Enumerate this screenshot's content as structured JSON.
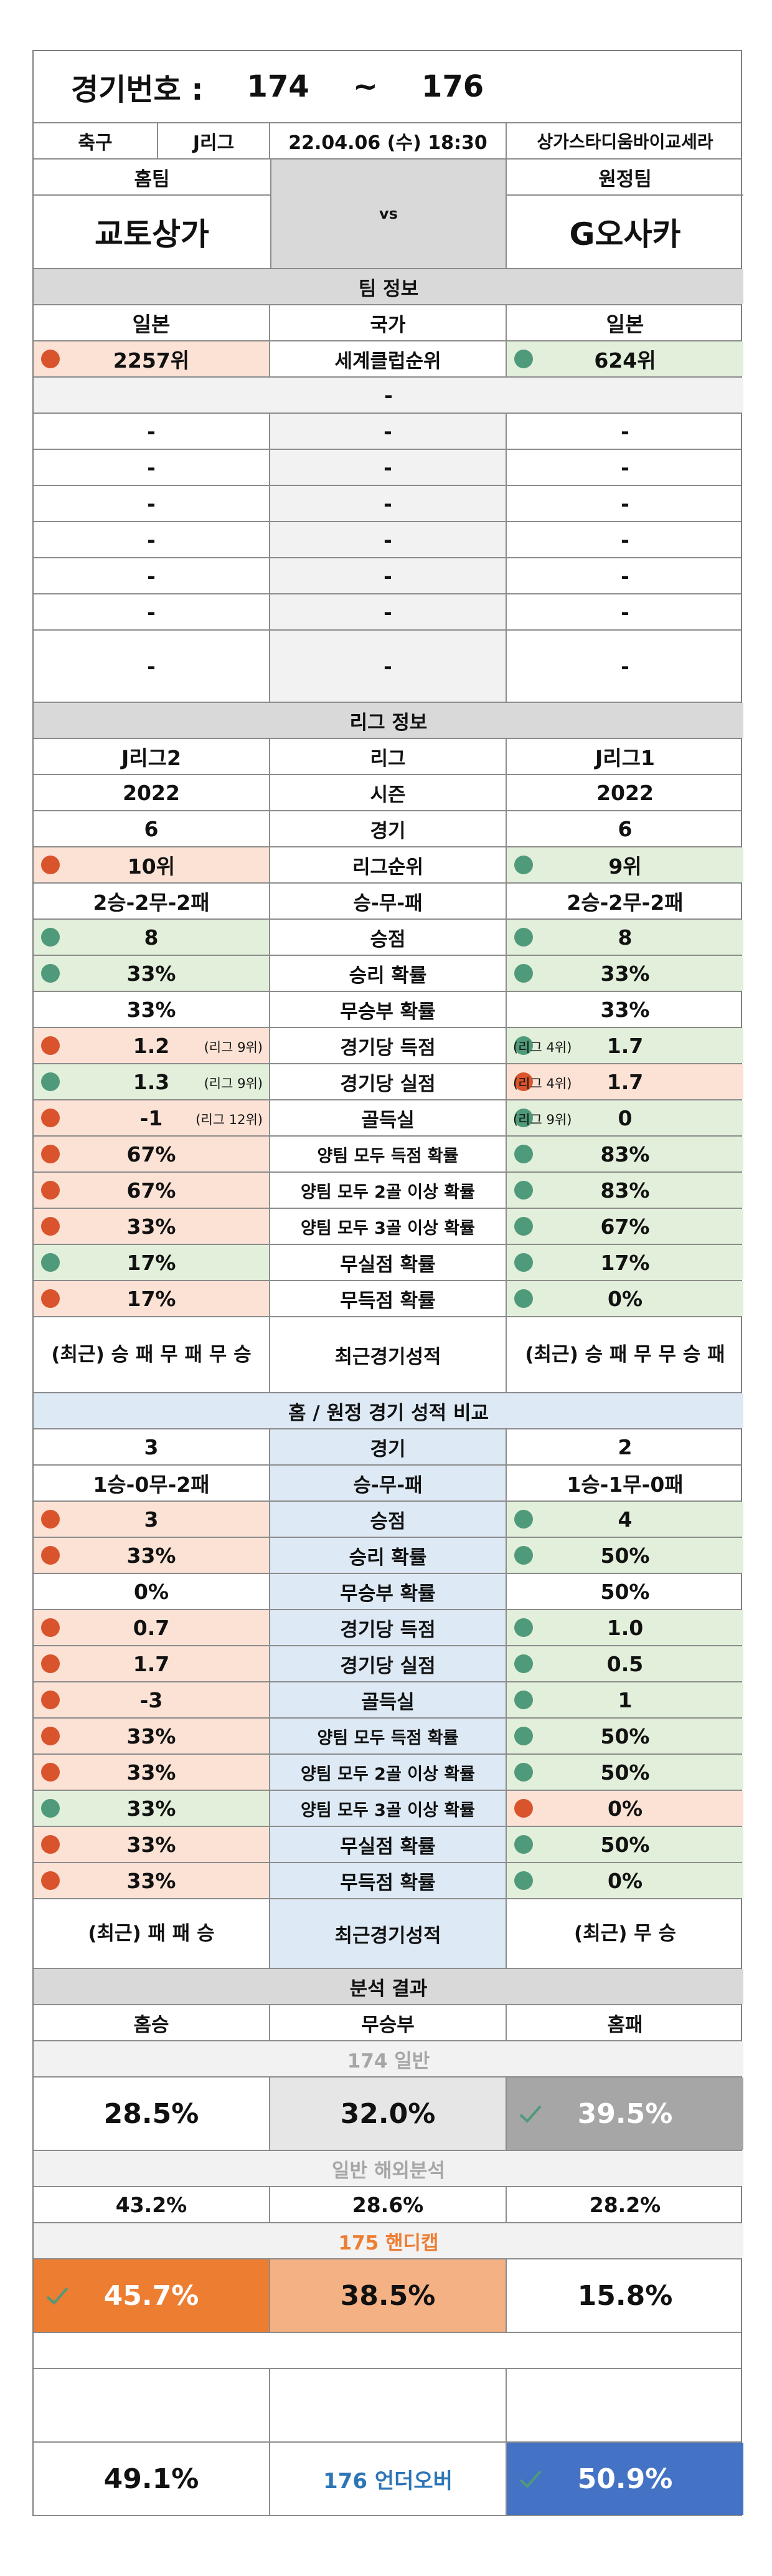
{
  "header": {
    "label": "경기번호 :",
    "from": "174",
    "sep": "~",
    "to": "176"
  },
  "match": {
    "sport": "축구",
    "league": "J리그",
    "datetime": "22.04.06 (수) 18:30",
    "venue": "상가스타디움바이교세라"
  },
  "teams": {
    "home_caption": "홈팀",
    "away_caption": "원정팀",
    "home": "교토상가",
    "away": "G오사카",
    "vs": "vs"
  },
  "team_info": {
    "title": "팀 정보",
    "country": {
      "home": "일본",
      "label": "국가",
      "away": "일본"
    },
    "club_rank": {
      "home": "2257위",
      "label": "세계클럽순위",
      "away": "624위"
    },
    "divider": "-",
    "blank_rows": [
      "-",
      "-",
      "-",
      "-",
      "-",
      "-",
      "-"
    ]
  },
  "league_info": {
    "title": "리그 정보",
    "rows": [
      {
        "home": "J리그2",
        "label": "리그",
        "away": "J리그1"
      },
      {
        "home": "2022",
        "label": "시즌",
        "away": "2022"
      },
      {
        "home": "6",
        "label": "경기",
        "away": "6"
      },
      {
        "home": "10위",
        "label": "리그순위",
        "away": "9위",
        "hc": "pink",
        "hd": "red",
        "ac": "green",
        "ad": "grn"
      },
      {
        "home": "2승-2무-2패",
        "label": "승-무-패",
        "away": "2승-2무-2패"
      },
      {
        "home": "8",
        "label": "승점",
        "away": "8",
        "hc": "green",
        "hd": "grn",
        "ac": "green",
        "ad": "grn"
      },
      {
        "home": "33%",
        "label": "승리 확률",
        "away": "33%",
        "hc": "green",
        "hd": "grn",
        "ac": "green",
        "ad": "grn"
      },
      {
        "home": "33%",
        "label": "무승부 확률",
        "away": "33%"
      },
      {
        "home": "1.2",
        "hnote": "(리그 9위)",
        "label": "경기당 득점",
        "away": "1.7",
        "anote": "(리그 4위)",
        "hc": "pink",
        "hd": "red",
        "ac": "green",
        "ad": "grn"
      },
      {
        "home": "1.3",
        "hnote": "(리그 9위)",
        "label": "경기당 실점",
        "away": "1.7",
        "anote": "(리그 4위)",
        "hc": "green",
        "hd": "grn",
        "ac": "pink",
        "ad": "red"
      },
      {
        "home": "-1",
        "hnote": "(리그 12위)",
        "label": "골득실",
        "away": "0",
        "anote": "(리그 9위)",
        "hc": "pink",
        "hd": "red",
        "ac": "green",
        "ad": "grn"
      },
      {
        "home": "67%",
        "label": "양팀 모두 득점 확률",
        "away": "83%",
        "hc": "pink",
        "hd": "red",
        "ac": "green",
        "ad": "grn"
      },
      {
        "home": "67%",
        "label": "양팀 모두 2골 이상 확률",
        "away": "83%",
        "hc": "pink",
        "hd": "red",
        "ac": "green",
        "ad": "grn"
      },
      {
        "home": "33%",
        "label": "양팀 모두 3골 이상 확률",
        "away": "67%",
        "hc": "pink",
        "hd": "red",
        "ac": "green",
        "ad": "grn"
      },
      {
        "home": "17%",
        "label": "무실점 확률",
        "away": "17%",
        "hc": "green",
        "hd": "grn",
        "ac": "green",
        "ad": "grn"
      },
      {
        "home": "17%",
        "label": "무득점 확률",
        "away": "0%",
        "hc": "pink",
        "hd": "red",
        "ac": "green",
        "ad": "grn"
      }
    ],
    "recent": {
      "home": "(최근) 승 패 무 패 무 승",
      "label": "최근경기성적",
      "away": "(최근) 승 패 무 무 승 패"
    }
  },
  "home_away": {
    "title": "홈 / 원정 경기 성적 비교",
    "rows": [
      {
        "home": "3",
        "label": "경기",
        "away": "2"
      },
      {
        "home": "1승-0무-2패",
        "label": "승-무-패",
        "away": "1승-1무-0패"
      },
      {
        "home": "3",
        "label": "승점",
        "away": "4",
        "hc": "pink",
        "hd": "red",
        "ac": "green",
        "ad": "grn"
      },
      {
        "home": "33%",
        "label": "승리 확률",
        "away": "50%",
        "hc": "pink",
        "hd": "red",
        "ac": "green",
        "ad": "grn"
      },
      {
        "home": "0%",
        "label": "무승부 확률",
        "away": "50%"
      },
      {
        "home": "0.7",
        "label": "경기당 득점",
        "away": "1.0",
        "hc": "pink",
        "hd": "red",
        "ac": "green",
        "ad": "grn"
      },
      {
        "home": "1.7",
        "label": "경기당 실점",
        "away": "0.5",
        "hc": "pink",
        "hd": "red",
        "ac": "green",
        "ad": "grn"
      },
      {
        "home": "-3",
        "label": "골득실",
        "away": "1",
        "hc": "pink",
        "hd": "red",
        "ac": "green",
        "ad": "grn"
      },
      {
        "home": "33%",
        "label": "양팀 모두 득점 확률",
        "away": "50%",
        "hc": "pink",
        "hd": "red",
        "ac": "green",
        "ad": "grn"
      },
      {
        "home": "33%",
        "label": "양팀 모두 2골 이상 확률",
        "away": "50%",
        "hc": "pink",
        "hd": "red",
        "ac": "green",
        "ad": "grn"
      },
      {
        "home": "33%",
        "label": "양팀 모두 3골 이상 확률",
        "away": "0%",
        "hc": "green",
        "hd": "grn",
        "ac": "pink",
        "ad": "red"
      },
      {
        "home": "33%",
        "label": "무실점 확률",
        "away": "50%",
        "hc": "pink",
        "hd": "red",
        "ac": "green",
        "ad": "grn"
      },
      {
        "home": "33%",
        "label": "무득점 확률",
        "away": "0%",
        "hc": "pink",
        "hd": "red",
        "ac": "green",
        "ad": "grn"
      }
    ],
    "recent": {
      "home": "(최근) 패 패 승",
      "label": "최근경기성적",
      "away": "(최근) 무 승"
    }
  },
  "analysis": {
    "title": "분석 결과",
    "cols": {
      "home_win": "홈승",
      "draw": "무승부",
      "home_loss": "홈패"
    },
    "general_title": "174 일반",
    "general": {
      "home_win": "28.5%",
      "draw": "32.0%",
      "home_loss": "39.5%"
    },
    "overseas_title": "일반 해외분석",
    "overseas": {
      "home_win": "43.2%",
      "draw": "28.6%",
      "home_loss": "28.2%"
    },
    "handicap_title": "175 핸디캡",
    "handicap": {
      "home_win": "45.7%",
      "draw": "38.5%",
      "home_loss": "15.8%"
    },
    "underover": {
      "under": "49.1%",
      "label": "176 언더오버",
      "over": "50.9%"
    }
  },
  "colors": {
    "win_dot": "#4f9a7a",
    "loss_dot": "#d9542c",
    "handicap_accent": "#ed7d31",
    "over_accent": "#4472c4",
    "general_pick": "#a6a6a6",
    "underover_label": "#2e75b6"
  }
}
